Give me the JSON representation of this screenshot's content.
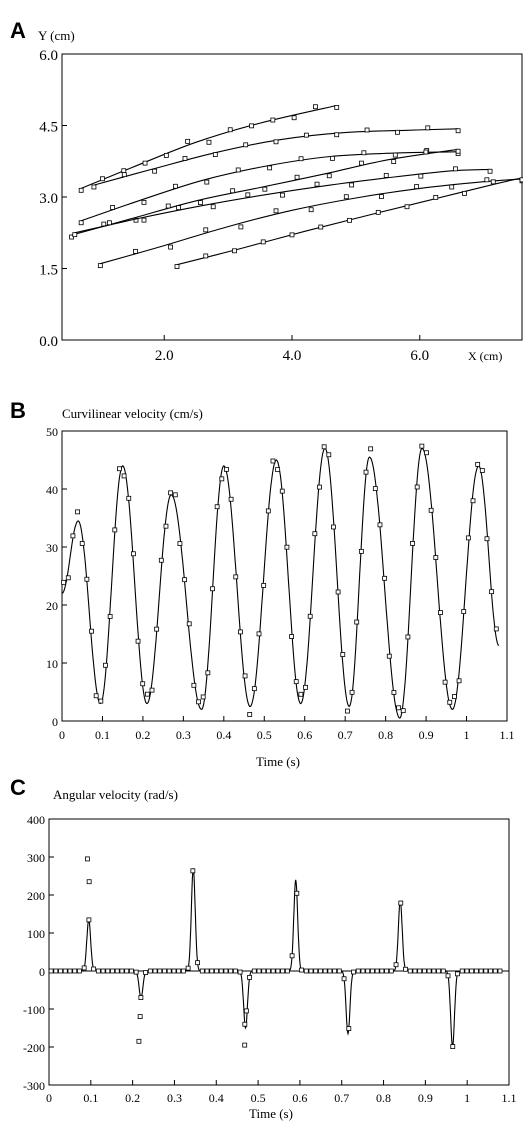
{
  "chart_data": [
    {
      "panel": "A",
      "type": "scatter",
      "ylabel": "Y (cm)",
      "xlabel": "X (cm)",
      "xlim": [
        0.4,
        7.6
      ],
      "ylim": [
        0.0,
        6.0
      ],
      "x_ticks": [
        2.0,
        4.0,
        6.0
      ],
      "x_tick_labels": [
        "2.0",
        "4.0",
        "6.0"
      ],
      "y_ticks": [
        0.0,
        1.5,
        3.0,
        4.5,
        6.0
      ],
      "y_tick_labels": [
        "0.0",
        "1.5",
        "3.0",
        "4.5",
        "6.0"
      ],
      "grid": false,
      "markers": "open squares with fitted curves",
      "series": [
        {
          "x": [
            0.7,
            1.5,
            2.5,
            3.5,
            4.7
          ],
          "y": [
            3.18,
            3.62,
            4.15,
            4.55,
            4.92
          ]
        },
        {
          "x": [
            0.9,
            1.8,
            2.8,
            3.8,
            4.8,
            5.8,
            6.6
          ],
          "y": [
            3.25,
            3.58,
            3.93,
            4.2,
            4.35,
            4.4,
            4.43
          ]
        },
        {
          "x": [
            0.7,
            1.6,
            2.6,
            3.6,
            4.6,
            5.6,
            6.6
          ],
          "y": [
            2.5,
            2.92,
            3.35,
            3.65,
            3.85,
            3.92,
            3.95
          ]
        },
        {
          "x": [
            0.55,
            1.5,
            2.5,
            3.5,
            4.5,
            5.5,
            6.6
          ],
          "y": [
            2.2,
            2.55,
            2.92,
            3.2,
            3.48,
            3.78,
            4.0
          ]
        },
        {
          "x": [
            0.6,
            1.6,
            2.6,
            3.6,
            4.6,
            5.6,
            6.5,
            7.1
          ],
          "y": [
            2.25,
            2.55,
            2.82,
            3.05,
            3.25,
            3.42,
            3.55,
            3.58
          ]
        },
        {
          "x": [
            1.0,
            2.0,
            3.0,
            4.0,
            5.0,
            6.0,
            7.0,
            7.6
          ],
          "y": [
            1.6,
            1.98,
            2.38,
            2.72,
            2.98,
            3.18,
            3.32,
            3.38
          ]
        },
        {
          "x": [
            2.2,
            3.2,
            4.2,
            5.2,
            6.2,
            7.2,
            7.6
          ],
          "y": [
            1.58,
            1.92,
            2.28,
            2.62,
            2.95,
            3.28,
            3.4
          ]
        }
      ]
    },
    {
      "panel": "B",
      "type": "line",
      "ylabel": "Curvilinear velocity (cm/s)",
      "xlabel": "Time (s)",
      "xlim": [
        0,
        1.1
      ],
      "ylim": [
        0,
        50
      ],
      "x_ticks": [
        0,
        0.1,
        0.2,
        0.3,
        0.4,
        0.5,
        0.6,
        0.7,
        0.8,
        0.9,
        1.0,
        1.1
      ],
      "x_tick_labels": [
        "0",
        "0.1",
        "0.2",
        "0.3",
        "0.4",
        "0.5",
        "0.6",
        "0.7",
        "0.8",
        "0.9",
        "1",
        "1.1"
      ],
      "y_ticks": [
        0,
        10,
        20,
        30,
        40,
        50
      ],
      "y_tick_labels": [
        "0",
        "10",
        "20",
        "30",
        "40",
        "50"
      ],
      "grid": false,
      "markers": "open squares with fitted curve",
      "keypoints": {
        "x": [
          0.0,
          0.04,
          0.095,
          0.15,
          0.21,
          0.27,
          0.345,
          0.4,
          0.465,
          0.53,
          0.59,
          0.65,
          0.71,
          0.76,
          0.835,
          0.89,
          0.965,
          1.03,
          1.08
        ],
        "y": [
          22,
          34.5,
          3,
          44,
          3,
          39,
          2,
          44,
          2.5,
          45,
          3,
          47,
          2.5,
          45.5,
          0.5,
          47,
          2,
          44,
          13
        ]
      }
    },
    {
      "panel": "C",
      "type": "line",
      "ylabel": "Angular velocity (rad/s)",
      "xlabel": "Time (s)",
      "xlim": [
        0,
        1.1
      ],
      "ylim": [
        -300,
        400
      ],
      "x_ticks": [
        0,
        0.1,
        0.2,
        0.3,
        0.4,
        0.5,
        0.6,
        0.7,
        0.8,
        0.9,
        1.0,
        1.1
      ],
      "x_tick_labels": [
        "0",
        "0.1",
        "0.2",
        "0.3",
        "0.4",
        "0.5",
        "0.6",
        "0.7",
        "0.8",
        "0.9",
        "1",
        "1.1"
      ],
      "y_ticks": [
        -300,
        -200,
        -100,
        0,
        100,
        200,
        300,
        400
      ],
      "y_tick_labels": [
        "-300",
        "-200",
        "-100",
        "0",
        "100",
        "200",
        "300",
        "400"
      ],
      "grid": false,
      "markers": "open squares with fitted curve",
      "peaks": {
        "x": [
          0.095,
          0.22,
          0.345,
          0.47,
          0.59,
          0.715,
          0.84,
          0.965
        ],
        "y": [
          135,
          -70,
          270,
          -150,
          240,
          -165,
          185,
          -200
        ]
      },
      "outliers": {
        "x": [
          0.092,
          0.096,
          0.215,
          0.218,
          0.468,
          0.472
        ],
        "y": [
          295,
          235,
          -185,
          -120,
          -195,
          -105
        ]
      }
    }
  ]
}
